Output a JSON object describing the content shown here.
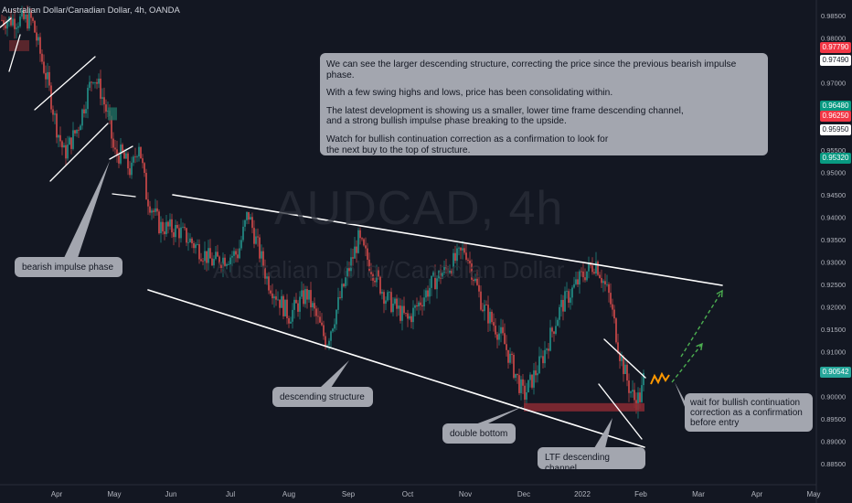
{
  "header": {
    "title": "Australian Dollar/Canadian Dollar, 4h, OANDA"
  },
  "watermark": {
    "symbol": "AUDCAD, 4h",
    "description": "Australian Dollar/Canadian Dollar"
  },
  "colors": {
    "background": "#131722",
    "up_candle": "#26a69a",
    "down_candle": "#ef5350",
    "trendline": "#ffffff",
    "arrow": "#4caf50",
    "zigzag": "#ff9800",
    "callout_bg": "#a3a6af",
    "zone": "#8b2a32"
  },
  "note": {
    "paragraphs": [
      "We can see the larger descending structure, correcting the price since the previous bearish impulse phase.",
      "With a few swing highs and lows, price has been consolidating within.",
      "The latest development is showing us a smaller, lower time frame descending channel,\nand a strong bullish impulse phase breaking to the upside.",
      "Watch for bullish continuation correction as a confirmation to look for\nthe next buy to the top of structure."
    ]
  },
  "callouts": {
    "bearish_impulse": "bearish impulse phase",
    "descending_structure": "descending structure",
    "double_bottom": "double bottom",
    "ltf_channel": "LTF descending channel",
    "wait": "wait for bullish continuation\ncorrection as a confirmation\nbefore entry"
  },
  "price_tags": [
    {
      "label": "0.97790",
      "bg": "#f23645",
      "fg": "#ffffff",
      "price": 0.9779
    },
    {
      "label": "0.97490",
      "bg": "#ffffff",
      "fg": "#131722",
      "price": 0.9749
    },
    {
      "label": "0.96480",
      "bg": "#089981",
      "fg": "#ffffff",
      "price": 0.9648
    },
    {
      "label": "0.96250",
      "bg": "#f23645",
      "fg": "#ffffff",
      "price": 0.9625
    },
    {
      "label": "0.95950",
      "bg": "#ffffff",
      "fg": "#131722",
      "price": 0.9595
    },
    {
      "label": "0.95320",
      "bg": "#089981",
      "fg": "#ffffff",
      "price": 0.9532
    },
    {
      "label": "0.90542",
      "bg": "#26a69a",
      "fg": "#ffffff",
      "price": 0.90542
    }
  ],
  "chart_data": {
    "type": "candlestick",
    "title": "Australian Dollar/Canadian Dollar, 4h, OANDA",
    "ylim": [
      0.8828,
      0.9878
    ],
    "y_ticks": [
      "0.98500",
      "0.98000",
      "0.97500",
      "0.97000",
      "0.96500",
      "0.96000",
      "0.95500",
      "0.95000",
      "0.94500",
      "0.94000",
      "0.93500",
      "0.93000",
      "0.92500",
      "0.92000",
      "0.91500",
      "0.91000",
      "0.90500",
      "0.90000",
      "0.89500",
      "0.89000",
      "0.88500"
    ],
    "x_ticks": [
      "Apr",
      "May",
      "Jun",
      "Jul",
      "Aug",
      "Sep",
      "Oct",
      "Nov",
      "Dec",
      "2022",
      "Feb",
      "Mar",
      "Apr",
      "May"
    ],
    "close_path": [
      [
        "Mar 17",
        0.984
      ],
      [
        "Mar 22",
        0.976
      ],
      [
        "Mar 26",
        0.97
      ],
      [
        "Mar 31",
        0.96
      ],
      [
        "Apr 5",
        0.954
      ],
      [
        "Apr 12",
        0.96
      ],
      [
        "Apr 20",
        0.972
      ],
      [
        "Apr 24",
        0.968
      ],
      [
        "Apr 28",
        0.962
      ],
      [
        "May 1",
        0.954
      ],
      [
        "May 5",
        0.954
      ],
      [
        "May 10",
        0.95
      ],
      [
        "May 14",
        0.957
      ],
      [
        "May 18",
        0.945
      ],
      [
        "May 25",
        0.938
      ],
      [
        "Jun 5",
        0.937
      ],
      [
        "Jun 15",
        0.933
      ],
      [
        "Jun 22",
        0.93
      ],
      [
        "Jul 5",
        0.932
      ],
      [
        "Jul 10",
        0.941
      ],
      [
        "Jul 20",
        0.926
      ],
      [
        "Aug 1",
        0.918
      ],
      [
        "Aug 10",
        0.923
      ],
      [
        "Aug 20",
        0.912
      ],
      [
        "Sep 1",
        0.928
      ],
      [
        "Sep 6",
        0.935
      ],
      [
        "Sep 20",
        0.922
      ],
      [
        "Oct 1",
        0.917
      ],
      [
        "Oct 15",
        0.926
      ],
      [
        "Oct 25",
        0.93
      ],
      [
        "Nov 1",
        0.933
      ],
      [
        "Nov 10",
        0.92
      ],
      [
        "Nov 20",
        0.913
      ],
      [
        "Dec 1",
        0.9
      ],
      [
        "Dec 10",
        0.908
      ],
      [
        "Dec 20",
        0.92
      ],
      [
        "Jan 1",
        0.927
      ],
      [
        "Jan 8",
        0.93
      ],
      [
        "Jan 15",
        0.922
      ],
      [
        "Jan 20",
        0.91
      ],
      [
        "Jan 25",
        0.902
      ],
      [
        "Jan 28",
        0.899
      ],
      [
        "Feb 1",
        0.9
      ],
      [
        "Feb 3",
        0.9054
      ]
    ],
    "last_price": 0.90542,
    "annotations": [
      "bearish impulse phase",
      "descending structure",
      "double bottom",
      "LTF descending channel",
      "wait for bullish continuation correction as a confirmation before entry"
    ],
    "grid": false
  }
}
